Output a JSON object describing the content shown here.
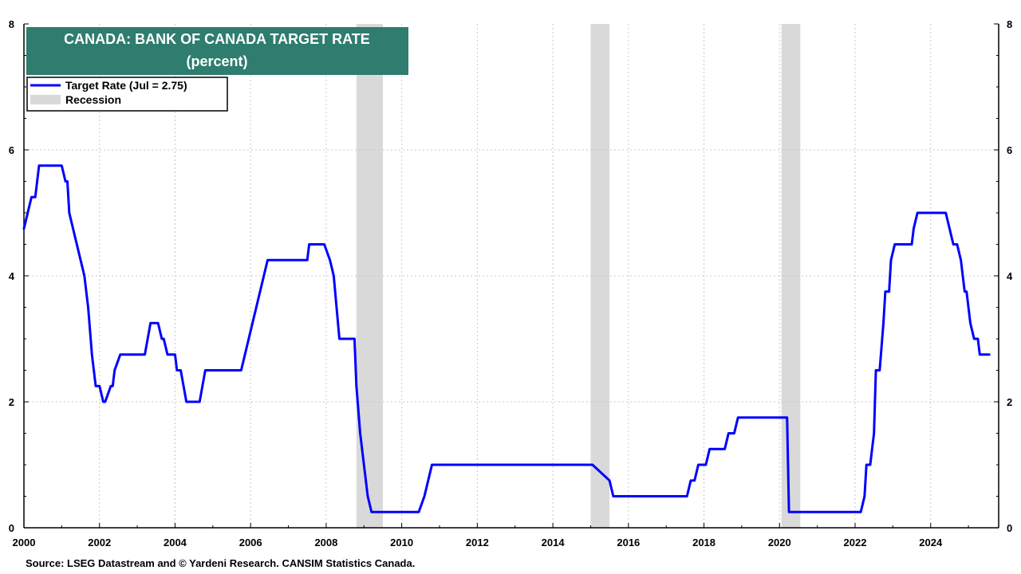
{
  "chart_data": {
    "type": "line",
    "title": "CANADA: BANK OF CANADA TARGET RATE",
    "subtitle": "(percent)",
    "source": "Source: LSEG Datastream and © Yardeni Research. CANSIM Statistics Canada.",
    "title_box_color": "#2e7d6e",
    "xlim": [
      2000,
      2025.8
    ],
    "ylim": [
      0,
      8
    ],
    "x_ticks": [
      2000,
      2002,
      2004,
      2006,
      2008,
      2010,
      2012,
      2014,
      2016,
      2018,
      2020,
      2022,
      2024
    ],
    "y_ticks": [
      0,
      2,
      4,
      6,
      8
    ],
    "grid": true,
    "legend_position": "top-left",
    "legend": [
      {
        "label": "Target Rate (Jul = 2.75)",
        "kind": "line",
        "color": "#0000ff"
      },
      {
        "label": "Recession",
        "kind": "band",
        "color": "#d9d9d9"
      }
    ],
    "recessions": [
      [
        2008.8,
        2009.5
      ],
      [
        2015.0,
        2015.5
      ],
      [
        2020.05,
        2020.55
      ]
    ],
    "series": [
      {
        "name": "Target Rate",
        "color": "#0000ff",
        "x": [
          2000.0,
          2000.1,
          2000.2,
          2000.3,
          2000.35,
          2000.4,
          2001.0,
          2001.1,
          2001.15,
          2001.2,
          2001.3,
          2001.4,
          2001.5,
          2001.6,
          2001.7,
          2001.8,
          2001.9,
          2002.0,
          2002.1,
          2002.15,
          2002.3,
          2002.35,
          2002.4,
          2002.55,
          2003.2,
          2003.35,
          2003.55,
          2003.65,
          2003.7,
          2003.8,
          2004.0,
          2004.05,
          2004.15,
          2004.3,
          2004.65,
          2004.8,
          2005.75,
          2005.85,
          2005.95,
          2006.05,
          2006.15,
          2006.25,
          2006.35,
          2006.45,
          2007.5,
          2007.55,
          2007.95,
          2008.1,
          2008.2,
          2008.35,
          2008.75,
          2008.8,
          2008.9,
          2009.0,
          2009.1,
          2009.2,
          2009.3,
          2009.5,
          2010.45,
          2010.6,
          2010.7,
          2010.8,
          2015.05,
          2015.5,
          2015.6,
          2017.55,
          2017.65,
          2017.75,
          2017.85,
          2018.05,
          2018.15,
          2018.55,
          2018.65,
          2018.8,
          2018.9,
          2020.2,
          2020.25,
          2020.3,
          2022.15,
          2022.25,
          2022.3,
          2022.4,
          2022.5,
          2022.55,
          2022.65,
          2022.75,
          2022.8,
          2022.9,
          2022.95,
          2023.05,
          2023.15,
          2023.5,
          2023.55,
          2023.65,
          2024.4,
          2024.5,
          2024.6,
          2024.7,
          2024.8,
          2024.9,
          2024.95,
          2025.05,
          2025.15,
          2025.25,
          2025.3,
          2025.55
        ],
        "values": [
          4.75,
          5.0,
          5.25,
          5.25,
          5.5,
          5.75,
          5.75,
          5.5,
          5.5,
          5.0,
          4.75,
          4.5,
          4.25,
          4.0,
          3.5,
          2.75,
          2.25,
          2.25,
          2.0,
          2.0,
          2.25,
          2.25,
          2.5,
          2.75,
          2.75,
          3.25,
          3.25,
          3.0,
          3.0,
          2.75,
          2.75,
          2.5,
          2.5,
          2.0,
          2.0,
          2.5,
          2.5,
          2.75,
          3.0,
          3.25,
          3.5,
          3.75,
          4.0,
          4.25,
          4.25,
          4.5,
          4.5,
          4.25,
          4.0,
          3.0,
          3.0,
          2.25,
          1.5,
          1.0,
          0.5,
          0.25,
          0.25,
          0.25,
          0.25,
          0.5,
          0.75,
          1.0,
          1.0,
          0.75,
          0.5,
          0.5,
          0.75,
          0.75,
          1.0,
          1.0,
          1.25,
          1.25,
          1.5,
          1.5,
          1.75,
          1.75,
          0.25,
          0.25,
          0.25,
          0.5,
          1.0,
          1.0,
          1.5,
          2.5,
          2.5,
          3.25,
          3.75,
          3.75,
          4.25,
          4.5,
          4.5,
          4.5,
          4.75,
          5.0,
          5.0,
          4.75,
          4.5,
          4.5,
          4.25,
          3.75,
          3.75,
          3.25,
          3.0,
          3.0,
          2.75,
          2.75
        ]
      }
    ]
  }
}
